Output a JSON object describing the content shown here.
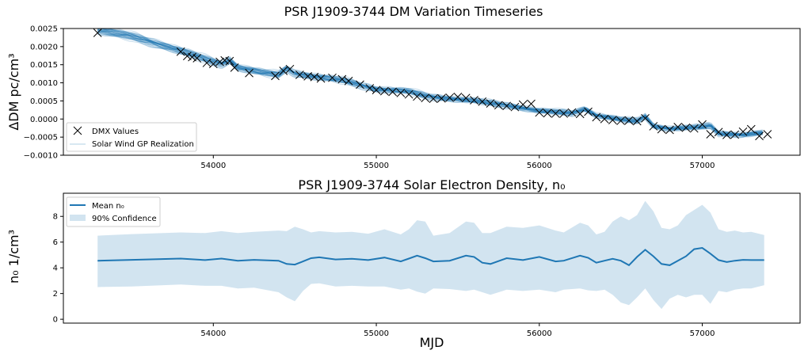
{
  "chart_data": [
    {
      "type": "scatter",
      "title": "PSR J1909-3744 DM Variation Timeseries",
      "xlabel": "",
      "ylabel": "ΔDM pc/cm³",
      "xlim": [
        53080,
        57600
      ],
      "ylim": [
        -0.001,
        0.0025
      ],
      "xticks": [
        "54000",
        "55000",
        "56000",
        "57000"
      ],
      "yticks": [
        "0.0025",
        "0.0020",
        "0.0015",
        "0.0010",
        "0.0005",
        "0.0000",
        "−0.0005",
        "−0.0010"
      ],
      "grid": false,
      "legend": {
        "placement": "lower-left",
        "entries": [
          "DMX Values",
          "Solar Wind GP Realization"
        ]
      },
      "series": [
        {
          "name": "DMX Values",
          "marker": "x",
          "color": "#000000",
          "x": [
            53290,
            53800,
            53840,
            53870,
            53900,
            53960,
            54000,
            54040,
            54070,
            54100,
            54130,
            54220,
            54380,
            54430,
            54470,
            54530,
            54580,
            54620,
            54660,
            54730,
            54790,
            54830,
            54900,
            54960,
            55000,
            55050,
            55100,
            55150,
            55200,
            55250,
            55300,
            55350,
            55400,
            55450,
            55500,
            55550,
            55600,
            55650,
            55700,
            55750,
            55800,
            55850,
            55900,
            55950,
            56000,
            56050,
            56100,
            56150,
            56200,
            56250,
            56300,
            56350,
            56400,
            56450,
            56500,
            56550,
            56600,
            56650,
            56700,
            56750,
            56800,
            56850,
            56900,
            56950,
            57000,
            57050,
            57100,
            57150,
            57200,
            57250,
            57300,
            57350,
            57400
          ],
          "y": [
            0.00238,
            0.00186,
            0.00174,
            0.00171,
            0.00168,
            0.00155,
            0.00152,
            0.00158,
            0.00162,
            0.0016,
            0.00142,
            0.00127,
            0.00119,
            0.00133,
            0.00138,
            0.00122,
            0.00118,
            0.00116,
            0.00112,
            0.00114,
            0.0011,
            0.00105,
            0.00095,
            0.00085,
            0.0008,
            0.00077,
            0.00075,
            0.00072,
            0.00068,
            0.00062,
            0.00058,
            0.00056,
            0.00057,
            0.00059,
            0.00061,
            0.00058,
            0.00052,
            0.00048,
            0.00043,
            0.00038,
            0.00036,
            0.00033,
            0.0004,
            0.00042,
            0.00018,
            0.00016,
            0.00015,
            0.00015,
            0.00018,
            0.00014,
            0.0002,
            5e-05,
            0.0,
            -3e-05,
            -5e-05,
            -4e-05,
            -6e-05,
            2e-05,
            -0.0002,
            -0.00028,
            -0.0003,
            -0.00022,
            -0.00024,
            -0.00026,
            -0.00015,
            -0.00042,
            -0.00036,
            -0.00044,
            -0.00043,
            -0.00035,
            -0.00028,
            -0.00047,
            -0.00042
          ]
        },
        {
          "name": "Solar Wind GP Realization",
          "type": "line",
          "color": "#1f77b4",
          "x": [
            53290,
            53500,
            53800,
            54000,
            54050,
            54100,
            54150,
            54300,
            54400,
            54450,
            54500,
            54600,
            54800,
            55000,
            55200,
            55300,
            55400,
            55600,
            55800,
            56000,
            56200,
            56280,
            56350,
            56500,
            56600,
            56650,
            56700,
            56800,
            56900,
            57000,
            57050,
            57100,
            57250,
            57380
          ],
          "y": [
            0.00245,
            0.00228,
            0.00188,
            0.00158,
            0.00152,
            0.00162,
            0.00142,
            0.00128,
            0.00122,
            0.0014,
            0.00126,
            0.00118,
            0.00106,
            0.00082,
            0.00076,
            0.00064,
            0.00058,
            0.0005,
            0.00038,
            0.00022,
            0.00016,
            0.00028,
            0.0001,
            -2e-05,
            -6e-05,
            8e-05,
            -0.0002,
            -0.00027,
            -0.00025,
            -0.00022,
            -0.00018,
            -0.0004,
            -0.00044,
            -0.00038
          ]
        }
      ]
    },
    {
      "type": "line",
      "title": "PSR J1909-3744 Solar Electron Density, n₀",
      "xlabel": "MJD",
      "ylabel": "n₀ 1/cm³",
      "xlim": [
        53080,
        57600
      ],
      "ylim": [
        -0.3,
        9.8
      ],
      "xticks": [
        "54000",
        "55000",
        "56000",
        "57000"
      ],
      "yticks": [
        "0",
        "2",
        "4",
        "6",
        "8"
      ],
      "grid": false,
      "legend": {
        "placement": "upper-left",
        "entries": [
          "Mean n₀",
          "90% Confidence"
        ]
      },
      "series": [
        {
          "name": "Mean n₀",
          "color": "#1f77b4",
          "x": [
            53290,
            53500,
            53800,
            53950,
            54050,
            54150,
            54250,
            54400,
            54450,
            54500,
            54550,
            54600,
            54650,
            54750,
            54850,
            54950,
            55050,
            55150,
            55200,
            55250,
            55300,
            55350,
            55450,
            55550,
            55600,
            55650,
            55700,
            55800,
            55900,
            56000,
            56100,
            56150,
            56250,
            56300,
            56350,
            56400,
            56450,
            56500,
            56550,
            56600,
            56650,
            56700,
            56750,
            56800,
            56850,
            56900,
            56950,
            57000,
            57050,
            57100,
            57150,
            57200,
            57250,
            57300,
            57380
          ],
          "y": [
            4.55,
            4.62,
            4.72,
            4.6,
            4.72,
            4.55,
            4.62,
            4.55,
            4.3,
            4.25,
            4.5,
            4.75,
            4.82,
            4.65,
            4.7,
            4.6,
            4.8,
            4.5,
            4.72,
            4.95,
            4.75,
            4.5,
            4.55,
            4.95,
            4.85,
            4.4,
            4.3,
            4.75,
            4.6,
            4.85,
            4.5,
            4.55,
            4.95,
            4.78,
            4.4,
            4.55,
            4.7,
            4.55,
            4.2,
            4.85,
            5.4,
            4.9,
            4.3,
            4.2,
            4.55,
            4.9,
            5.45,
            5.55,
            5.1,
            4.6,
            4.45,
            4.55,
            4.62,
            4.6,
            4.6
          ]
        },
        {
          "name": "90% Confidence",
          "type": "area",
          "color": "#1f77b4",
          "x": [
            53290,
            53500,
            53800,
            53950,
            54050,
            54150,
            54250,
            54400,
            54450,
            54500,
            54550,
            54600,
            54650,
            54750,
            54850,
            54950,
            55050,
            55150,
            55200,
            55250,
            55300,
            55350,
            55450,
            55550,
            55600,
            55650,
            55700,
            55800,
            55900,
            56000,
            56100,
            56150,
            56250,
            56300,
            56350,
            56400,
            56450,
            56500,
            56550,
            56600,
            56650,
            56700,
            56750,
            56800,
            56850,
            56900,
            56950,
            57000,
            57050,
            57100,
            57150,
            57200,
            57250,
            57300,
            57380
          ],
          "upper": [
            6.5,
            6.62,
            6.75,
            6.7,
            6.85,
            6.7,
            6.8,
            6.9,
            6.85,
            7.2,
            7.0,
            6.75,
            6.85,
            6.75,
            6.8,
            6.65,
            7.0,
            6.6,
            7.0,
            7.7,
            7.6,
            6.5,
            6.7,
            7.6,
            7.5,
            6.7,
            6.7,
            7.2,
            7.1,
            7.3,
            6.9,
            6.75,
            7.5,
            7.3,
            6.6,
            6.8,
            7.6,
            8.0,
            7.7,
            8.1,
            9.2,
            8.4,
            7.1,
            7.0,
            7.3,
            8.1,
            8.5,
            8.9,
            8.3,
            7.0,
            6.8,
            6.9,
            6.75,
            6.8,
            6.55
          ],
          "lower": [
            2.5,
            2.55,
            2.7,
            2.6,
            2.6,
            2.4,
            2.45,
            2.1,
            1.7,
            1.4,
            2.2,
            2.75,
            2.8,
            2.55,
            2.6,
            2.55,
            2.55,
            2.3,
            2.4,
            2.15,
            2.0,
            2.4,
            2.35,
            2.2,
            2.3,
            2.1,
            1.9,
            2.3,
            2.2,
            2.3,
            2.1,
            2.3,
            2.4,
            2.25,
            2.2,
            2.3,
            1.9,
            1.3,
            1.1,
            1.7,
            2.4,
            1.5,
            0.8,
            1.6,
            1.9,
            1.7,
            1.9,
            1.9,
            1.2,
            2.2,
            2.1,
            2.3,
            2.4,
            2.4,
            2.65
          ]
        }
      ]
    }
  ]
}
